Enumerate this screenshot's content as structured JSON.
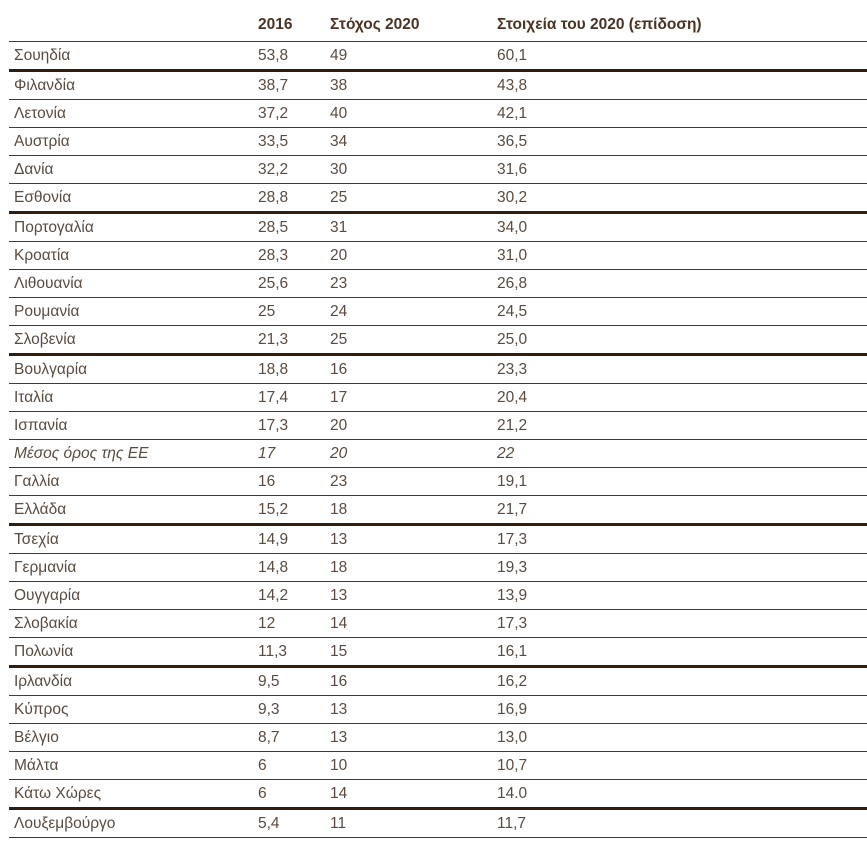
{
  "accent_colors": {
    "header_text": "#4c3222",
    "body_text": "#594b40",
    "thin_rule": "#4e3726",
    "thick_rule": "#2f1d10",
    "background": "#ffffff"
  },
  "chart_data": {
    "type": "table",
    "title": "",
    "columns": [
      "",
      "2016",
      "Στόχος 2020",
      "Στοιχεία του 2020 (επίδοση)"
    ],
    "rows": [
      {
        "country": "Σουηδία",
        "y2016": "53,8",
        "target": "49",
        "actual": "60,1",
        "thick": true,
        "italic": false
      },
      {
        "country": "Φιλανδία",
        "y2016": "38,7",
        "target": "38",
        "actual": "43,8",
        "thick": false,
        "italic": false
      },
      {
        "country": "Λετονία",
        "y2016": "37,2",
        "target": "40",
        "actual": "42,1",
        "thick": false,
        "italic": false
      },
      {
        "country": "Αυστρία",
        "y2016": "33,5",
        "target": "34",
        "actual": "36,5",
        "thick": false,
        "italic": false
      },
      {
        "country": "Δανία",
        "y2016": "32,2",
        "target": "30",
        "actual": "31,6",
        "thick": false,
        "italic": false
      },
      {
        "country": "Εσθονία",
        "y2016": "28,8",
        "target": "25",
        "actual": "30,2",
        "thick": true,
        "italic": false
      },
      {
        "country": "Πορτογαλία",
        "y2016": "28,5",
        "target": "31",
        "actual": "34,0",
        "thick": false,
        "italic": false
      },
      {
        "country": "Κροατία",
        "y2016": "28,3",
        "target": "20",
        "actual": "31,0",
        "thick": false,
        "italic": false
      },
      {
        "country": "Λιθουανία",
        "y2016": "25,6",
        "target": "23",
        "actual": "26,8",
        "thick": false,
        "italic": false
      },
      {
        "country": "Ρουμανία",
        "y2016": "25",
        "target": "24",
        "actual": "24,5",
        "thick": false,
        "italic": false
      },
      {
        "country": "Σλοβενία",
        "y2016": "21,3",
        "target": "25",
        "actual": "25,0",
        "thick": true,
        "italic": false
      },
      {
        "country": "Βουλγαρία",
        "y2016": "18,8",
        "target": "16",
        "actual": "23,3",
        "thick": false,
        "italic": false
      },
      {
        "country": "Ιταλία",
        "y2016": "17,4",
        "target": "17",
        "actual": "20,4",
        "thick": false,
        "italic": false
      },
      {
        "country": "Ισπανία",
        "y2016": "17,3",
        "target": "20",
        "actual": "21,2",
        "thick": false,
        "italic": false
      },
      {
        "country": "Μέσος όρος της ΕΕ",
        "y2016": "17",
        "target": "20",
        "actual": "22",
        "thick": false,
        "italic": true
      },
      {
        "country": "Γαλλία",
        "y2016": "16",
        "target": "23",
        "actual": "19,1",
        "thick": false,
        "italic": false
      },
      {
        "country": "Ελλάδα",
        "y2016": "15,2",
        "target": "18",
        "actual": "21,7",
        "thick": true,
        "italic": false
      },
      {
        "country": "Τσεχία",
        "y2016": "14,9",
        "target": "13",
        "actual": "17,3",
        "thick": false,
        "italic": false
      },
      {
        "country": "Γερμανία",
        "y2016": "14,8",
        "target": "18",
        "actual": "19,3",
        "thick": false,
        "italic": false
      },
      {
        "country": "Ουγγαρία",
        "y2016": "14,2",
        "target": "13",
        "actual": "13,9",
        "thick": false,
        "italic": false
      },
      {
        "country": "Σλοβακία",
        "y2016": "12",
        "target": "14",
        "actual": "17,3",
        "thick": false,
        "italic": false
      },
      {
        "country": "Πολωνία",
        "y2016": "11,3",
        "target": "15",
        "actual": "16,1",
        "thick": true,
        "italic": false
      },
      {
        "country": "Ιρλανδία",
        "y2016": "9,5",
        "target": "16",
        "actual": "16,2",
        "thick": false,
        "italic": false
      },
      {
        "country": "Κύπρος",
        "y2016": "9,3",
        "target": "13",
        "actual": "16,9",
        "thick": false,
        "italic": false
      },
      {
        "country": "Βέλγιο",
        "y2016": "8,7",
        "target": "13",
        "actual": "13,0",
        "thick": false,
        "italic": false
      },
      {
        "country": "Μάλτα",
        "y2016": "6",
        "target": "10",
        "actual": "10,7",
        "thick": false,
        "italic": false
      },
      {
        "country": "Κάτω Χώρες",
        "y2016": "6",
        "target": "14",
        "actual": "14.0",
        "thick": true,
        "italic": false
      },
      {
        "country": "Λουξεμβούργο",
        "y2016": "5,4",
        "target": "11",
        "actual": "11,7",
        "thick": false,
        "italic": false
      }
    ]
  }
}
